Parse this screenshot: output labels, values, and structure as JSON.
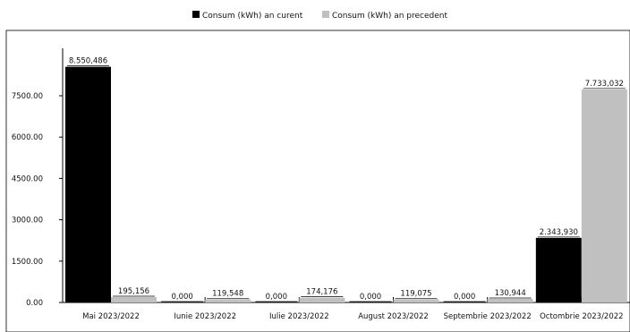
{
  "chart_data": {
    "type": "bar",
    "title": "",
    "xlabel": "",
    "ylabel": "",
    "ylim": [
      0,
      9000
    ],
    "yticks": [
      0,
      1500,
      3000,
      4500,
      6000,
      7500
    ],
    "ytick_labels": [
      "0.00",
      "1500.00",
      "3000.00",
      "4500.00",
      "6000.00",
      "7500.00"
    ],
    "grid": false,
    "legend_position": "top-center",
    "categories": [
      "Mai 2023/2022",
      "Iunie 2023/2022",
      "Iulie 2023/2022",
      "August 2023/2022",
      "Septembrie 2023/2022",
      "Octombrie 2023/2022"
    ],
    "series": [
      {
        "name": "Consum (kWh) an curent",
        "color": "#000000",
        "values": [
          8550.486,
          0,
          0,
          0,
          0,
          2343.93
        ],
        "labels": [
          "8.550,486",
          "0,000",
          "0,000",
          "0,000",
          "0,000",
          "2.343,930"
        ]
      },
      {
        "name": "Consum (kWh) an precedent",
        "color": "#c0c0c0",
        "values": [
          195.156,
          119.548,
          174.176,
          119.075,
          130.944,
          7733.032
        ],
        "labels": [
          "195,156",
          "119,548",
          "174,176",
          "119,075",
          "130,944",
          "7.733,032"
        ]
      }
    ]
  }
}
